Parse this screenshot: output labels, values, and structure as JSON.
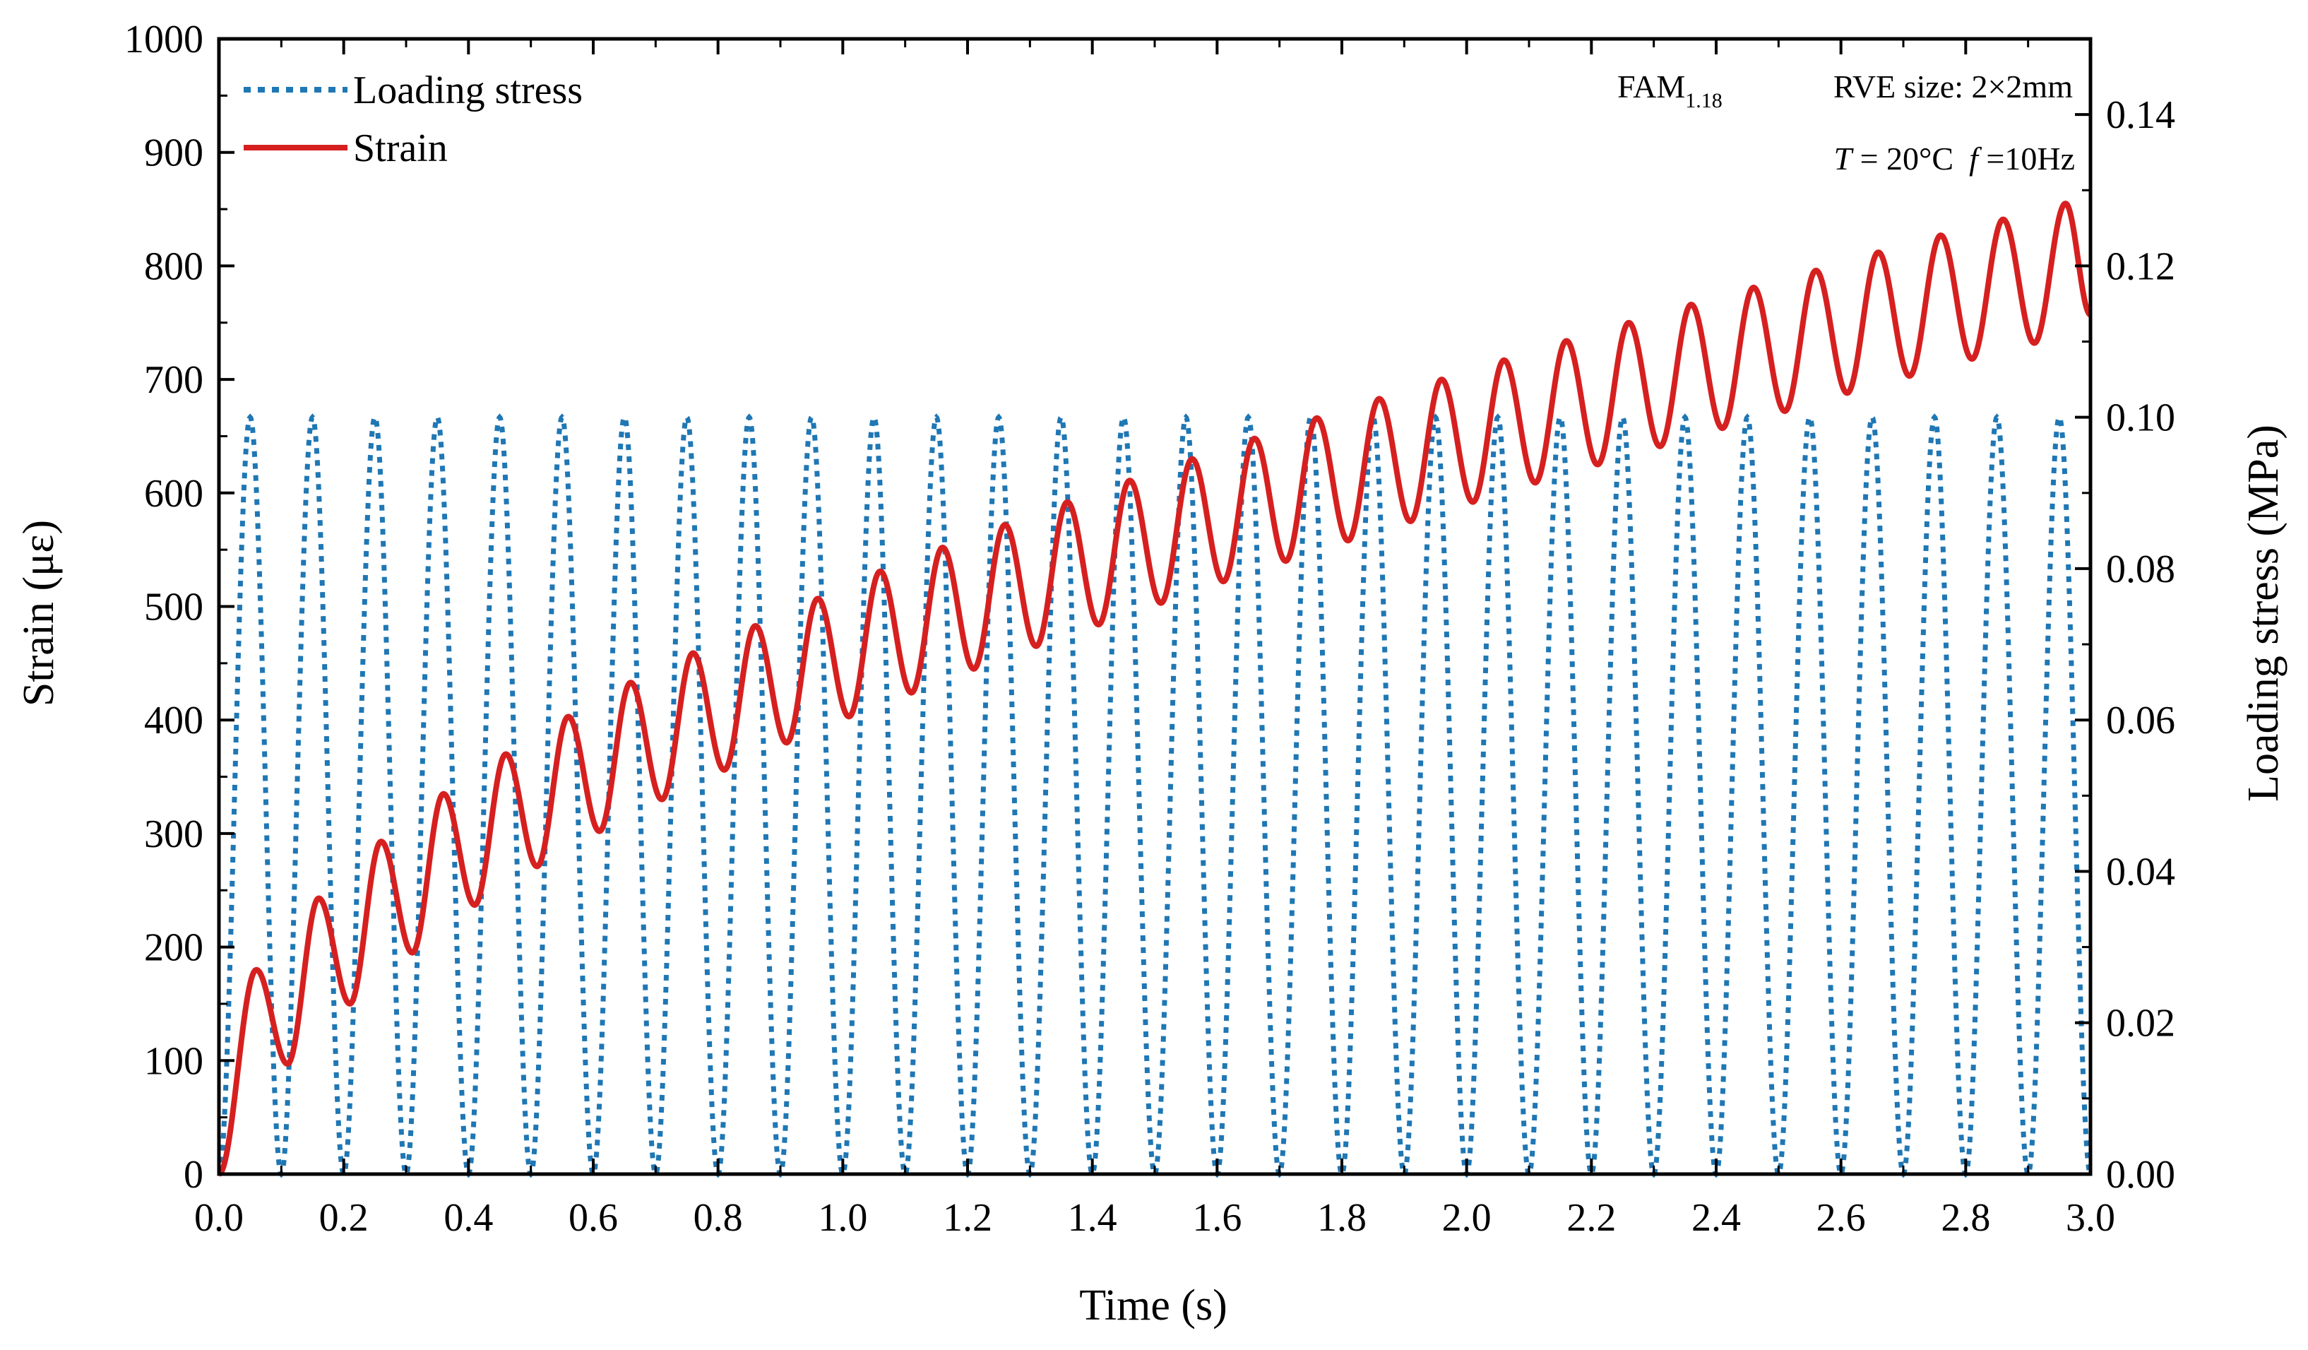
{
  "chart_data": {
    "type": "line",
    "title": "",
    "xlabel": "Time (s)",
    "ylabel": "Strain (με)",
    "y2label": "Loading stress (MPa)",
    "xlim": [
      0,
      3.0
    ],
    "ylim": [
      0,
      1000
    ],
    "y2lim": [
      0,
      0.15
    ],
    "x_ticks": [
      "0.0",
      "0.2",
      "0.4",
      "0.6",
      "0.8",
      "1.0",
      "1.2",
      "1.4",
      "1.6",
      "1.8",
      "2.0",
      "2.2",
      "2.4",
      "2.6",
      "2.8",
      "3.0"
    ],
    "y_ticks": [
      "0",
      "100",
      "200",
      "300",
      "400",
      "500",
      "600",
      "700",
      "800",
      "900",
      "1000"
    ],
    "y2_ticks": [
      "0.00",
      "0.02",
      "0.04",
      "0.06",
      "0.08",
      "0.10",
      "0.12",
      "0.14"
    ],
    "grid": false,
    "legend_position": "top-left",
    "series": [
      {
        "name": "Loading stress",
        "axis": "right",
        "style": "dotted",
        "color": "#1f77b4",
        "frequency_hz": 10,
        "min": 0.0,
        "max": 0.1,
        "x": [
          0.0,
          0.05,
          0.1,
          0.15,
          0.2,
          0.25,
          0.3,
          0.35,
          0.4,
          0.45,
          0.5,
          0.55,
          0.6,
          0.65,
          0.7,
          0.75,
          0.8,
          0.85,
          0.9,
          0.95,
          1.0,
          1.05,
          1.1,
          1.15,
          1.2,
          1.25,
          1.3,
          1.35,
          1.4,
          1.45,
          1.5,
          1.55,
          1.6,
          1.65,
          1.7,
          1.75,
          1.8,
          1.85,
          1.9,
          1.95,
          2.0,
          2.05,
          2.1,
          2.15,
          2.2,
          2.25,
          2.3,
          2.35,
          2.4,
          2.45,
          2.5,
          2.55,
          2.6,
          2.65,
          2.7,
          2.75,
          2.8,
          2.85,
          2.9,
          2.95,
          3.0
        ],
        "values": [
          0.0,
          0.1,
          0.0,
          0.1,
          0.0,
          0.1,
          0.0,
          0.1,
          0.0,
          0.1,
          0.0,
          0.1,
          0.0,
          0.1,
          0.0,
          0.1,
          0.0,
          0.1,
          0.0,
          0.1,
          0.0,
          0.1,
          0.0,
          0.1,
          0.0,
          0.1,
          0.0,
          0.1,
          0.0,
          0.1,
          0.0,
          0.1,
          0.0,
          0.1,
          0.0,
          0.1,
          0.0,
          0.1,
          0.0,
          0.1,
          0.0,
          0.1,
          0.0,
          0.1,
          0.0,
          0.1,
          0.0,
          0.1,
          0.0,
          0.1,
          0.0,
          0.1,
          0.0,
          0.1,
          0.0,
          0.1,
          0.0,
          0.1,
          0.0,
          0.1,
          0.0
        ]
      },
      {
        "name": "Strain",
        "axis": "left",
        "style": "solid",
        "color": "#d62020",
        "peaks": {
          "x": [
            0.06,
            0.16,
            0.26,
            0.36,
            0.46,
            0.56,
            0.66,
            0.76,
            0.86,
            0.96,
            1.06,
            1.16,
            1.26,
            1.36,
            1.46,
            1.56,
            1.66,
            1.76,
            1.86,
            1.96,
            2.06,
            2.16,
            2.26,
            2.36,
            2.46,
            2.56,
            2.66,
            2.76,
            2.86,
            2.96
          ],
          "values": [
            180,
            243,
            293,
            335,
            370,
            403,
            433,
            459,
            483,
            507,
            531,
            552,
            572,
            592,
            611,
            630,
            648,
            666,
            683,
            700,
            717,
            734,
            750,
            766,
            781,
            796,
            812,
            827,
            841,
            855
          ]
        },
        "troughs": {
          "x": [
            0.0,
            0.11,
            0.21,
            0.31,
            0.41,
            0.51,
            0.61,
            0.71,
            0.81,
            0.91,
            1.01,
            1.11,
            1.21,
            1.31,
            1.41,
            1.51,
            1.61,
            1.71,
            1.81,
            1.91,
            2.01,
            2.11,
            2.21,
            2.31,
            2.41,
            2.51,
            2.61,
            2.71,
            2.81,
            2.91
          ],
          "values": [
            0,
            97,
            150,
            195,
            237,
            271,
            302,
            330,
            356,
            380,
            403,
            424,
            445,
            465,
            484,
            503,
            522,
            540,
            558,
            575,
            592,
            609,
            625,
            641,
            657,
            672,
            688,
            703,
            718,
            732
          ]
        },
        "end": {
          "x": 3.0,
          "value": 757
        }
      }
    ]
  },
  "annotation": {
    "material_base": "FAM",
    "material_sub": "1.18",
    "rve": "RVE size: 2×2mm",
    "temp_label": "T",
    "temp_value": " = 20°C",
    "freq_label": "f",
    "freq_value": " =10Hz"
  },
  "colors": {
    "stress": "#1f77b4",
    "strain": "#d62020",
    "axes": "#000000"
  }
}
